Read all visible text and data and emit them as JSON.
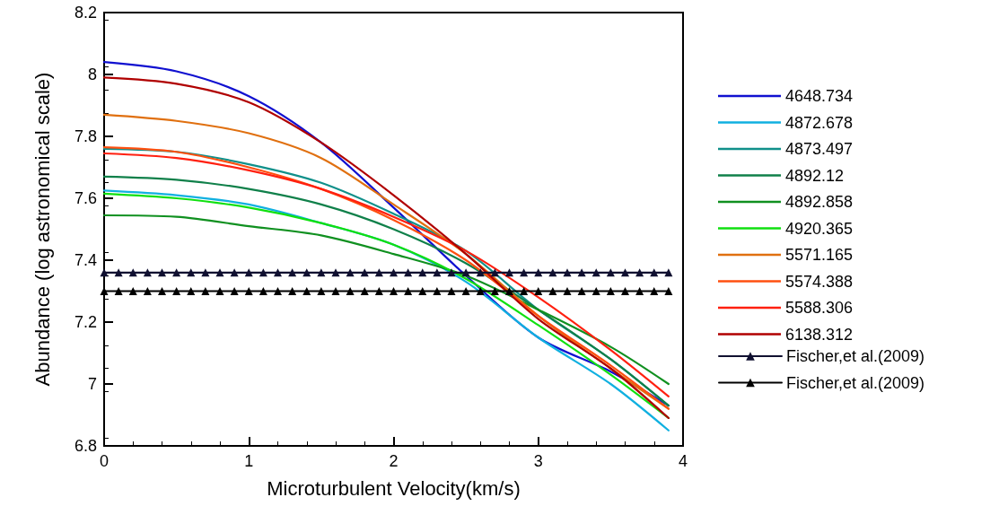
{
  "chart_data": {
    "type": "line",
    "xlabel": "Microturbulent Velocity(km/s)",
    "ylabel": "Abundance (log astronomical scale)",
    "x": [
      0,
      0.5,
      1,
      1.5,
      2,
      2.5,
      3,
      3.5,
      3.9
    ],
    "xlim": [
      0,
      4
    ],
    "xticks": [
      0,
      1,
      2,
      3,
      4
    ],
    "ylim": [
      6.8,
      8.2
    ],
    "yticks": [
      6.8,
      7,
      7.2,
      7.4,
      7.6,
      7.8,
      8,
      8.2
    ],
    "grid": false,
    "legend": "right",
    "marker": "none",
    "line_style": "solid",
    "series": [
      {
        "name": "4648.734",
        "color": "#1010d0",
        "values": [
          8.04,
          8.01,
          7.93,
          7.78,
          7.57,
          7.35,
          7.15,
          7.04,
          6.93
        ]
      },
      {
        "name": "4872.678",
        "color": "#10b0e0",
        "values": [
          7.625,
          7.61,
          7.58,
          7.52,
          7.45,
          7.33,
          7.15,
          7,
          6.85
        ]
      },
      {
        "name": "4873.497",
        "color": "#10908a",
        "values": [
          7.76,
          7.75,
          7.71,
          7.65,
          7.55,
          7.43,
          7.24,
          7.08,
          6.93
        ]
      },
      {
        "name": "4892.12",
        "color": "#10804a",
        "values": [
          7.67,
          7.66,
          7.63,
          7.58,
          7.5,
          7.39,
          7.24,
          7.08,
          6.93
        ]
      },
      {
        "name": "4892.858",
        "color": "#109020",
        "values": [
          7.545,
          7.54,
          7.51,
          7.48,
          7.42,
          7.35,
          7.24,
          7.12,
          7
        ]
      },
      {
        "name": "4920.365",
        "color": "#10e010",
        "values": [
          7.615,
          7.6,
          7.57,
          7.52,
          7.45,
          7.34,
          7.19,
          7.03,
          6.89
        ]
      },
      {
        "name": "5571.165",
        "color": "#e07010",
        "values": [
          7.87,
          7.85,
          7.81,
          7.73,
          7.58,
          7.42,
          7.22,
          7.05,
          6.92
        ]
      },
      {
        "name": "5574.388",
        "color": "#ff5010",
        "values": [
          7.765,
          7.75,
          7.7,
          7.63,
          7.53,
          7.4,
          7.22,
          7.06,
          6.92
        ]
      },
      {
        "name": "5588.306",
        "color": "#ff2010",
        "values": [
          7.745,
          7.73,
          7.69,
          7.63,
          7.54,
          7.43,
          7.28,
          7.11,
          6.96
        ]
      },
      {
        "name": "6138.312",
        "color": "#b00000",
        "values": [
          7.99,
          7.97,
          7.91,
          7.78,
          7.61,
          7.42,
          7.21,
          7.05,
          6.89
        ]
      },
      {
        "name": "Fischer,et al.(2009)",
        "color": "#101030",
        "marker": "triangle",
        "x": [
          0,
          0.1,
          0.2,
          0.3,
          0.4,
          0.5,
          0.6,
          0.7,
          0.8,
          0.9,
          1,
          1.1,
          1.2,
          1.3,
          1.4,
          1.5,
          1.6,
          1.7,
          1.8,
          1.9,
          2,
          2.1,
          2.2,
          2.3,
          2.4,
          2.5,
          2.6,
          2.7,
          2.8,
          2.9,
          3,
          3.1,
          3.2,
          3.3,
          3.4,
          3.5,
          3.6,
          3.7,
          3.8,
          3.9
        ],
        "values": [
          7.36,
          7.36,
          7.36,
          7.36,
          7.36,
          7.36,
          7.36,
          7.36,
          7.36,
          7.36,
          7.36,
          7.36,
          7.36,
          7.36,
          7.36,
          7.36,
          7.36,
          7.36,
          7.36,
          7.36,
          7.36,
          7.36,
          7.36,
          7.36,
          7.36,
          7.36,
          7.36,
          7.36,
          7.36,
          7.36,
          7.36,
          7.36,
          7.36,
          7.36,
          7.36,
          7.36,
          7.36,
          7.36,
          7.36,
          7.36
        ]
      },
      {
        "name": "Fischer,et al.(2009)",
        "color": "#000000",
        "marker": "triangle",
        "x": [
          0,
          0.1,
          0.2,
          0.3,
          0.4,
          0.5,
          0.6,
          0.7,
          0.8,
          0.9,
          1,
          1.1,
          1.2,
          1.3,
          1.4,
          1.5,
          1.6,
          1.7,
          1.8,
          1.9,
          2,
          2.1,
          2.2,
          2.3,
          2.4,
          2.5,
          2.6,
          2.7,
          2.8,
          2.9,
          3,
          3.1,
          3.2,
          3.3,
          3.4,
          3.5,
          3.6,
          3.7,
          3.8,
          3.9
        ],
        "values": [
          7.3,
          7.3,
          7.3,
          7.3,
          7.3,
          7.3,
          7.3,
          7.3,
          7.3,
          7.3,
          7.3,
          7.3,
          7.3,
          7.3,
          7.3,
          7.3,
          7.3,
          7.3,
          7.3,
          7.3,
          7.3,
          7.3,
          7.3,
          7.3,
          7.3,
          7.3,
          7.3,
          7.3,
          7.3,
          7.3,
          7.3,
          7.3,
          7.3,
          7.3,
          7.3,
          7.3,
          7.3,
          7.3,
          7.3,
          7.3
        ]
      }
    ]
  }
}
